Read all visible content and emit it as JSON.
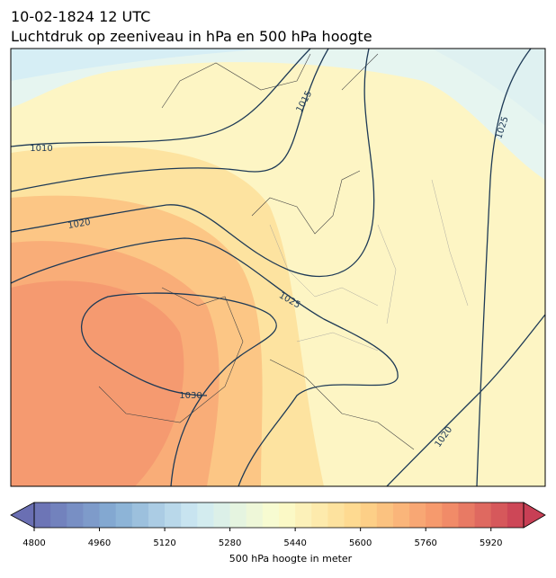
{
  "title": "10-02-1824 12 UTC",
  "subtitle": "Luchtdruk op zeeniveau in hPa en 500 hPa hoogte",
  "isobar_labels": [
    1010,
    1015,
    1020,
    1025,
    1025,
    1030,
    1020
  ],
  "colorbar": {
    "label": "500 hPa hoogte in meter",
    "lim": [
      4800,
      6000
    ],
    "ticks": [
      4800,
      4960,
      5120,
      5280,
      5440,
      5600,
      5760,
      5920
    ],
    "step": 40,
    "colors": [
      "#6a6fb3",
      "#86aed4",
      "#cfeaf3",
      "#fbfdcd",
      "#fed68a",
      "#f5936a",
      "#c83f55"
    ]
  }
}
